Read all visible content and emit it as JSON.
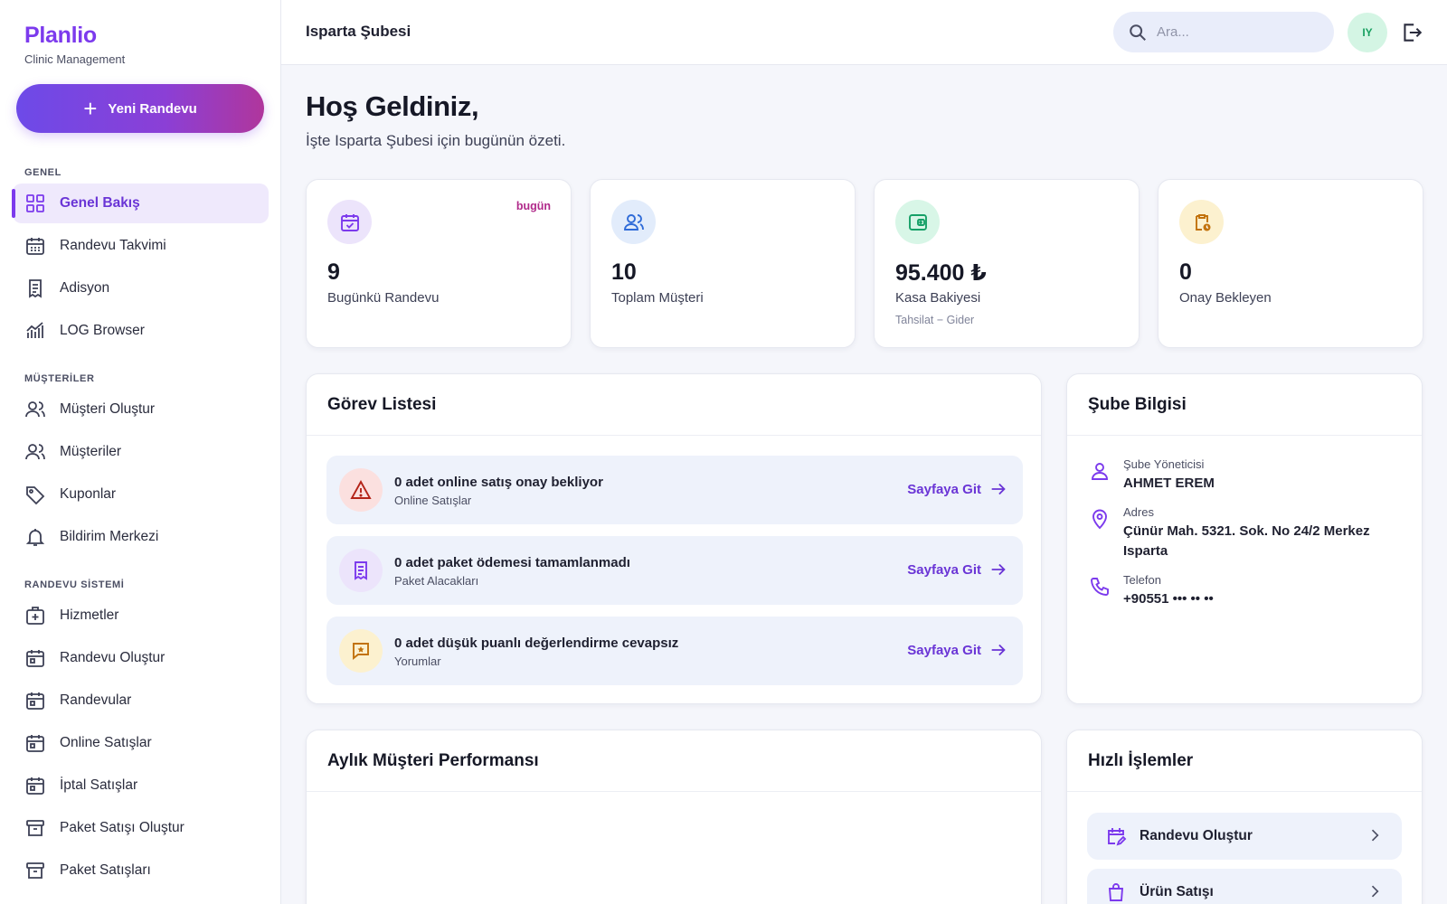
{
  "brand": {
    "name": "Planlio",
    "subtitle": "Clinic Management"
  },
  "new_appointment_label": "Yeni Randevu",
  "sidebar": {
    "sections": [
      {
        "label": "GENEL",
        "items": [
          {
            "label": "Genel Bakış",
            "icon": "grid-icon",
            "active": true
          },
          {
            "label": "Randevu Takvimi",
            "icon": "calendar-icon"
          },
          {
            "label": "Adisyon",
            "icon": "receipt-icon"
          },
          {
            "label": "LOG Browser",
            "icon": "chart-icon"
          }
        ]
      },
      {
        "label": "MÜŞTERİLER",
        "items": [
          {
            "label": "Müşteri Oluştur",
            "icon": "users-icon"
          },
          {
            "label": "Müşteriler",
            "icon": "users-icon"
          },
          {
            "label": "Kuponlar",
            "icon": "tag-icon"
          },
          {
            "label": "Bildirim Merkezi",
            "icon": "bell-icon"
          }
        ]
      },
      {
        "label": "RANDEVU SİSTEMİ",
        "items": [
          {
            "label": "Hizmetler",
            "icon": "medical-bag-icon"
          },
          {
            "label": "Randevu Oluştur",
            "icon": "calendar-icon"
          },
          {
            "label": "Randevular",
            "icon": "calendar-icon"
          },
          {
            "label": "Online Satışlar",
            "icon": "calendar-icon"
          },
          {
            "label": "İptal Satışlar",
            "icon": "calendar-icon"
          },
          {
            "label": "Paket Satışı Oluştur",
            "icon": "archive-icon"
          },
          {
            "label": "Paket Satışları",
            "icon": "archive-icon"
          }
        ]
      }
    ]
  },
  "topbar": {
    "title": "Isparta Şubesi",
    "search_placeholder": "Ara...",
    "avatar_initials": "IY"
  },
  "welcome": {
    "title": "Hoş Geldiniz,",
    "subtitle": "İşte Isparta Şubesi için bugünün özeti."
  },
  "stats": [
    {
      "value": "9",
      "label": "Bugünkü Randevu",
      "badge": "bugün",
      "icon": "calendar-check-icon",
      "color": "#7c3aed",
      "bg": "#ece4fb"
    },
    {
      "value": "10",
      "label": "Toplam Müşteri",
      "icon": "users-icon",
      "color": "#2f6bd8",
      "bg": "#e2ecfb"
    },
    {
      "value": "95.400 ₺",
      "label": "Kasa Bakiyesi",
      "sub": "Tahsilat − Gider",
      "icon": "wallet-icon",
      "color": "#16a067",
      "bg": "#d8f6e7"
    },
    {
      "value": "0",
      "label": "Onay Bekleyen",
      "icon": "clipboard-clock-icon",
      "color": "#c2720c",
      "bg": "#fcf1cf"
    }
  ],
  "tasks": {
    "title": "Görev Listesi",
    "go_label": "Sayfaya Git",
    "items": [
      {
        "title": "0 adet online satış onay bekliyor",
        "subtitle": "Online Satışlar",
        "icon": "warning-icon",
        "color": "#b42318",
        "bg": "#fbe0df"
      },
      {
        "title": "0 adet paket ödemesi tamamlanmadı",
        "subtitle": "Paket Alacakları",
        "icon": "receipt-icon",
        "color": "#7c3aed",
        "bg": "#ece4fb"
      },
      {
        "title": "0 adet düşük puanlı değerlendirme cevapsız",
        "subtitle": "Yorumlar",
        "icon": "star-message-icon",
        "color": "#c2720c",
        "bg": "#fcf1cf"
      }
    ]
  },
  "branch": {
    "title": "Şube Bilgisi",
    "manager_label": "Şube Yöneticisi",
    "manager": "AHMET EREM",
    "address_label": "Adres",
    "address": "Çünür Mah. 5321. Sok. No 24/2 Merkez Isparta",
    "phone_label": "Telefon",
    "phone": "+90551 ••• •• ••"
  },
  "performance": {
    "title": "Aylık Müşteri Performansı"
  },
  "quick_actions": {
    "title": "Hızlı İşlemler",
    "items": [
      {
        "label": "Randevu Oluştur",
        "icon": "calendar-edit-icon"
      },
      {
        "label": "Ürün Satışı",
        "icon": "shopping-bag-icon"
      }
    ]
  }
}
